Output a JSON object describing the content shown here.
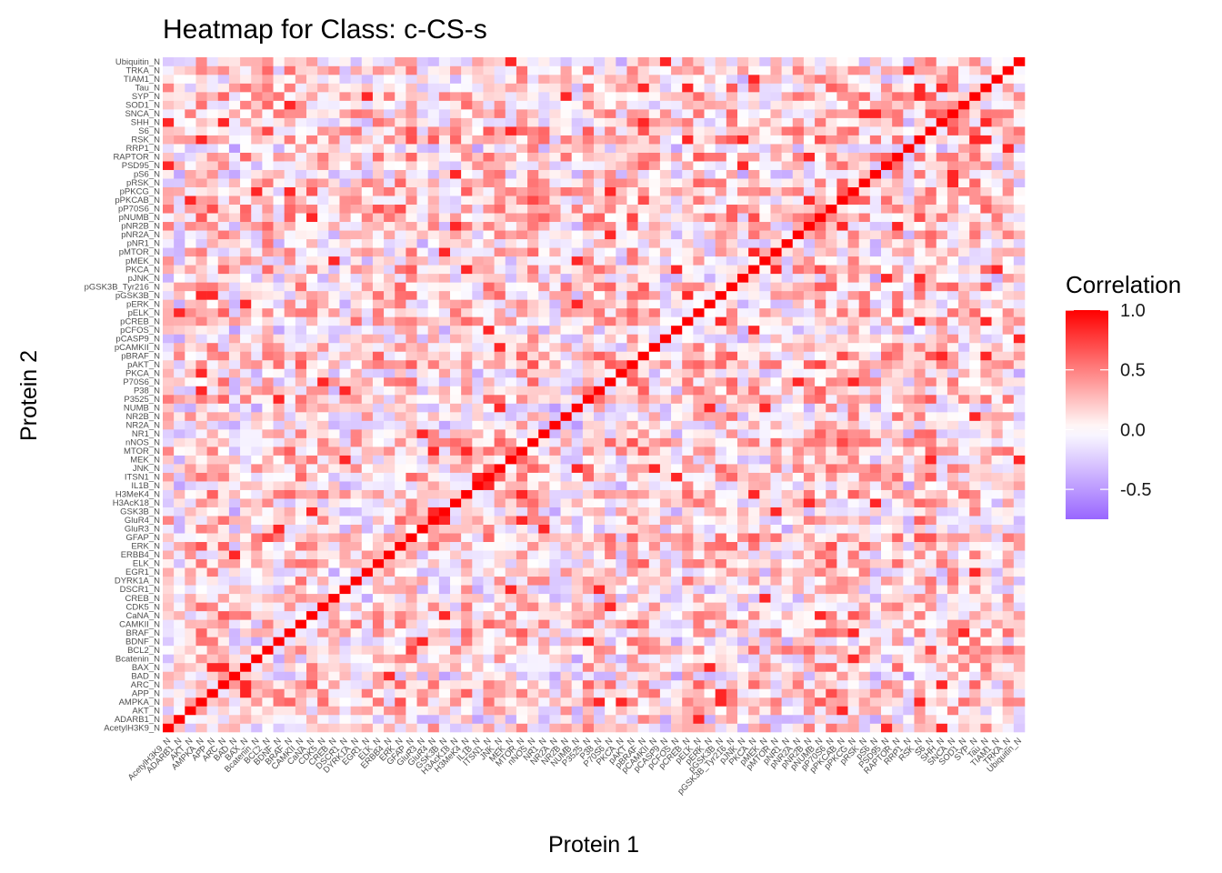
{
  "chart_data": {
    "type": "heatmap",
    "title": "Heatmap for Class: c-CS-s",
    "xlabel": "Protein 1",
    "ylabel": "Protein 2",
    "proteins": [
      "AcetylH3K9_N",
      "ADARB1_N",
      "AKT_N",
      "AMPKA_N",
      "APP_N",
      "ARC_N",
      "BAD_N",
      "BAX_N",
      "Bcatenin_N",
      "BCL2_N",
      "BDNF_N",
      "BRAF_N",
      "CAMKII_N",
      "CaNA_N",
      "CDK5_N",
      "CREB_N",
      "DSCR1_N",
      "DYRK1A_N",
      "EGR1_N",
      "ELK_N",
      "ERBB4_N",
      "ERK_N",
      "GFAP_N",
      "GluR3_N",
      "GluR4_N",
      "GSK3B_N",
      "H3AcK18_N",
      "H3MeK4_N",
      "IL1B_N",
      "ITSN1_N",
      "JNK_N",
      "MEK_N",
      "MTOR_N",
      "nNOS_N",
      "NR1_N",
      "NR2A_N",
      "NR2B_N",
      "NUMB_N",
      "P3525_N",
      "P38_N",
      "P70S6_N",
      "PKCA_N",
      "pAKT_N",
      "pBRAF_N",
      "pCAMKII_N",
      "pCASP9_N",
      "pCFOS_N",
      "pCREB_N",
      "pELK_N",
      "pERK_N",
      "pGSK3B_N",
      "pGSK3B_Tyr216_N",
      "pJNK_N",
      "PKCA_N",
      "pMEK_N",
      "pMTOR_N",
      "pNR1_N",
      "pNR2A_N",
      "pNR2B_N",
      "pNUMB_N",
      "pP70S6_N",
      "pPKCAB_N",
      "pPKCG_N",
      "pRSK_N",
      "pS6_N",
      "PSD95_N",
      "RAPTOR_N",
      "RRP1_N",
      "RSK_N",
      "S6_N",
      "SHH_N",
      "SNCA_N",
      "SOD1_N",
      "SYP_N",
      "Tau_N",
      "TIAM1_N",
      "TRKA_N",
      "Ubiquitin_N"
    ],
    "value_range": [
      -0.75,
      1.0
    ],
    "legend": {
      "title": "Correlation",
      "position": "right",
      "ticks": [
        1.0,
        0.5,
        0.0,
        -0.5
      ],
      "tick_labels": [
        "1.0",
        "0.5",
        "0.0",
        "-0.5"
      ]
    },
    "colorscale": {
      "low": "#9966FF",
      "mid": "#FFFFFF",
      "high": "#FF0000",
      "midpoint": 0
    },
    "diagonal_value": 1.0,
    "grid": false
  }
}
